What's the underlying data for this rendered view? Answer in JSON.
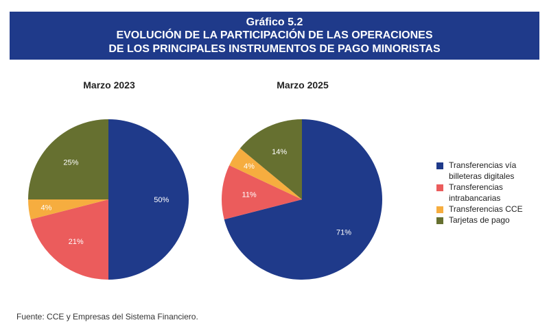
{
  "header": {
    "label": "Gráfico 5.2",
    "line1": "EVOLUCIÓN DE LA PARTICIPACIÓN DE LAS OPERACIONES",
    "line2": "DE LOS PRINCIPALES INSTRUMENTOS DE PAGO MINORISTAS"
  },
  "colors": {
    "header_bg": "#1f3a8a",
    "billeteras": "#1f3a8a",
    "intrabancarias": "#eb5c5c",
    "cce": "#f6ad3f",
    "tarjetas": "#667030"
  },
  "chart_data": [
    {
      "type": "pie",
      "title": "Marzo 2023",
      "categories": [
        "Transferencias vía billeteras digitales",
        "Transferencias intrabancarias",
        "Transferencias CCE",
        "Tarjetas de pago"
      ],
      "values": [
        50,
        21,
        4,
        25
      ],
      "labels": [
        "50%",
        "21%",
        "4%",
        "25%"
      ]
    },
    {
      "type": "pie",
      "title": "Marzo 2025",
      "categories": [
        "Transferencias vía billeteras digitales",
        "Transferencias intrabancarias",
        "Transferencias CCE",
        "Tarjetas de pago"
      ],
      "values": [
        71,
        11,
        4,
        14
      ],
      "labels": [
        "71%",
        "11%",
        "4%",
        "14%"
      ]
    }
  ],
  "legend": {
    "placement": "right",
    "items": [
      {
        "label": "Transferencias vía billeteras digitales",
        "color": "#1f3a8a"
      },
      {
        "label": "Transferencias intrabancarias",
        "color": "#eb5c5c"
      },
      {
        "label": "Transferencias CCE",
        "color": "#f6ad3f"
      },
      {
        "label": "Tarjetas de pago",
        "color": "#667030"
      }
    ]
  },
  "source": "Fuente: CCE y Empresas del Sistema Financiero."
}
